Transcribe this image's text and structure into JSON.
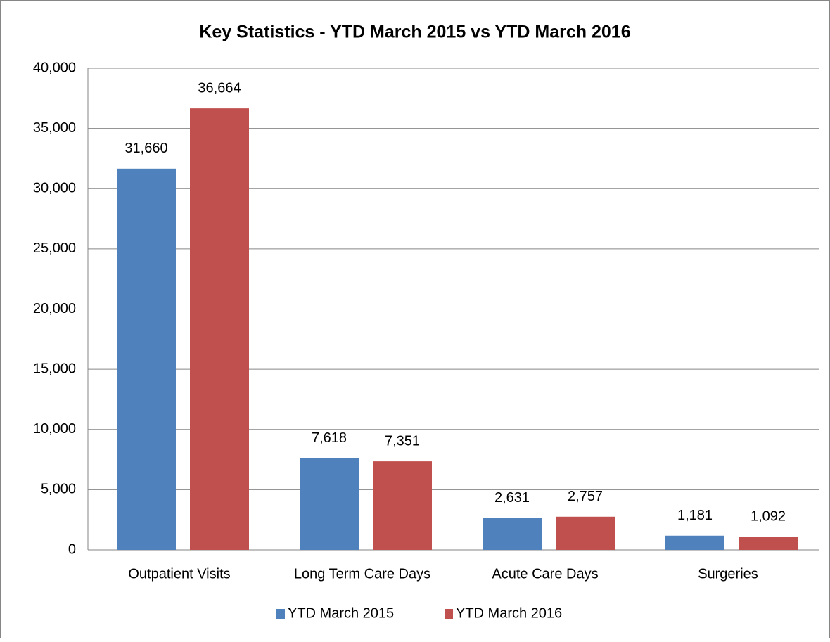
{
  "chart_data": {
    "type": "bar",
    "title": "Key Statistics - YTD March 2015 vs YTD March 2016",
    "categories": [
      "Outpatient Visits",
      "Long Term Care Days",
      "Acute Care Days",
      "Surgeries"
    ],
    "series": [
      {
        "name": "YTD March 2015",
        "color": "#4f81bd",
        "values": [
          31660,
          7618,
          2631,
          1181
        ],
        "value_labels": [
          "31,660",
          "7,618",
          "2,631",
          "1,181"
        ]
      },
      {
        "name": "YTD March 2016",
        "color": "#c0504d",
        "values": [
          36664,
          7351,
          2757,
          1092
        ],
        "value_labels": [
          "36,664",
          "7,351",
          "2,757",
          "1,092"
        ]
      }
    ],
    "ylim": [
      0,
      40000
    ],
    "yticks": [
      0,
      {
        "value": 5000,
        "label": "5,000"
      },
      {
        "value": 10000,
        "label": "10,000"
      },
      {
        "value": 15000,
        "label": "15,000"
      },
      {
        "value": 20000,
        "label": "20,000"
      },
      {
        "value": 25000,
        "label": "25,000"
      },
      {
        "value": 30000,
        "label": "30,000"
      },
      {
        "value": 35000,
        "label": "35,000"
      },
      {
        "value": 40000,
        "label": "40,000"
      }
    ],
    "grid": true,
    "legend": "bottom"
  }
}
